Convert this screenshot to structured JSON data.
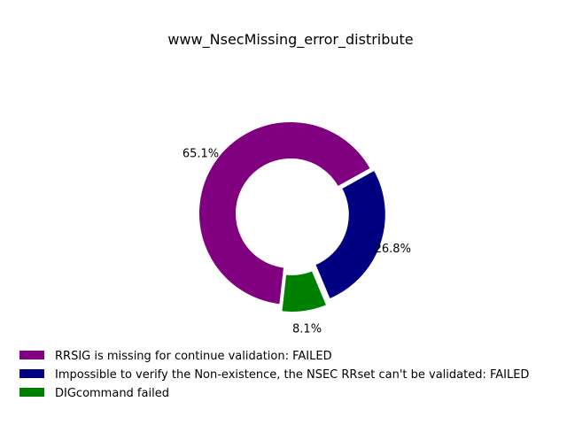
{
  "chart_data": {
    "type": "pie",
    "title": "www_NsecMissing_error_distribute",
    "donut": true,
    "legend_position": "bottom-left",
    "slices": [
      {
        "label": "RRSIG is missing for continue validation: FAILED",
        "value": 65.1,
        "pct_label": "65.1%",
        "color": "#800080"
      },
      {
        "label": "Impossible to verify the Non-existence, the NSEC RRset can't be validated: FAILED",
        "value": 26.8,
        "pct_label": "26.8%",
        "color": "#000080"
      },
      {
        "label": "DIGcommand failed",
        "value": 8.1,
        "pct_label": "8.1%",
        "color": "#008000"
      }
    ]
  }
}
